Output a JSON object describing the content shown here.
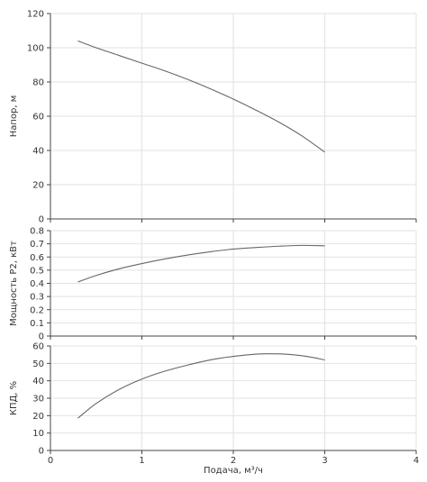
{
  "chart_data": [
    {
      "type": "line",
      "ylabel": "Напор, м",
      "xlim": [
        0,
        4
      ],
      "ylim": [
        0,
        120
      ],
      "xticks": [
        0,
        1,
        2,
        3,
        4
      ],
      "yticks": [
        0,
        20,
        40,
        60,
        80,
        100,
        120
      ],
      "grid": true,
      "series": [
        {
          "x": [
            0.3,
            0.5,
            0.75,
            1.0,
            1.25,
            1.5,
            1.75,
            2.0,
            2.25,
            2.5,
            2.75,
            3.0
          ],
          "y": [
            104,
            100,
            95.5,
            91,
            86.5,
            81.5,
            76,
            70,
            63.5,
            56.5,
            48.5,
            39
          ]
        }
      ]
    },
    {
      "type": "line",
      "ylabel": "Мощность P2, кВт",
      "xlim": [
        0,
        4
      ],
      "ylim": [
        0,
        0.8
      ],
      "xticks": [
        0,
        1,
        2,
        3,
        4
      ],
      "yticks": [
        0,
        0.1,
        0.2,
        0.3,
        0.4,
        0.5,
        0.6,
        0.7,
        0.8
      ],
      "grid": true,
      "series": [
        {
          "x": [
            0.3,
            0.5,
            0.75,
            1.0,
            1.25,
            1.5,
            1.75,
            2.0,
            2.25,
            2.5,
            2.75,
            3.0
          ],
          "y": [
            0.41,
            0.46,
            0.51,
            0.55,
            0.585,
            0.615,
            0.64,
            0.66,
            0.672,
            0.682,
            0.688,
            0.685
          ]
        }
      ]
    },
    {
      "type": "line",
      "ylabel": "КПД, %",
      "xlabel": "Подача, м³/ч",
      "xlim": [
        0,
        4
      ],
      "ylim": [
        0,
        60
      ],
      "xticks": [
        0,
        1,
        2,
        3,
        4
      ],
      "yticks": [
        0,
        10,
        20,
        30,
        40,
        50,
        60
      ],
      "grid": true,
      "series": [
        {
          "x": [
            0.3,
            0.5,
            0.75,
            1.0,
            1.25,
            1.5,
            1.75,
            2.0,
            2.25,
            2.4,
            2.6,
            2.8,
            3.0
          ],
          "y": [
            18.5,
            27,
            35,
            41,
            45.5,
            49,
            52,
            54,
            55.3,
            55.5,
            55.2,
            54,
            52
          ]
        }
      ]
    }
  ]
}
